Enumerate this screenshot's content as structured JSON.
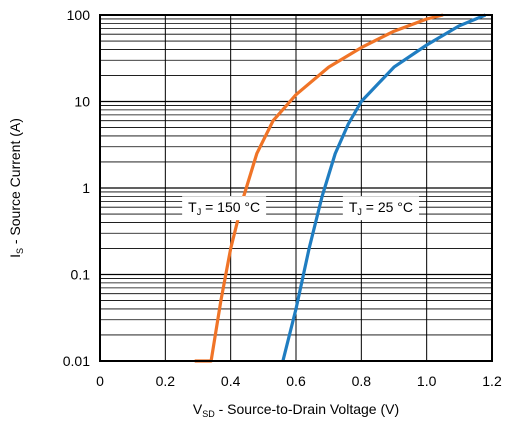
{
  "chart_data": {
    "type": "line",
    "xlabel": {
      "main": "V",
      "sub": "SD",
      "rest": " - Source-to-Drain Voltage (V)"
    },
    "ylabel": {
      "main": "I",
      "sub": "S",
      "rest": " - Source Current (A)"
    },
    "xlim": [
      0,
      1.2
    ],
    "ylim": [
      0.01,
      100
    ],
    "yscale": "log",
    "grid": true,
    "x_ticks": [
      0,
      0.2,
      0.4,
      0.6,
      0.8,
      1.0,
      1.2
    ],
    "x_tick_labels": [
      "0",
      "0.2",
      "0.4",
      "0.6",
      "0.8",
      "1.0",
      "1.2"
    ],
    "y_ticks": [
      0.01,
      0.1,
      1,
      10,
      100
    ],
    "y_tick_labels": [
      "0.01",
      "0.1",
      "1",
      "10",
      "100"
    ],
    "series": [
      {
        "name": {
          "main": "T",
          "sub": "J",
          "rest": " = 150 °C"
        },
        "color": "#F07427",
        "points": [
          [
            0.29,
            0.01
          ],
          [
            0.31,
            0.01
          ],
          [
            0.34,
            0.01
          ],
          [
            0.37,
            0.05
          ],
          [
            0.4,
            0.2
          ],
          [
            0.44,
            0.8
          ],
          [
            0.48,
            2.5
          ],
          [
            0.53,
            6
          ],
          [
            0.6,
            12
          ],
          [
            0.7,
            25
          ],
          [
            0.8,
            42
          ],
          [
            0.9,
            65
          ],
          [
            1.0,
            90
          ],
          [
            1.05,
            100
          ]
        ]
      },
      {
        "name": {
          "main": "T",
          "sub": "J",
          "rest": " = 25 °C"
        },
        "color": "#1F7DC1",
        "points": [
          [
            0.56,
            0.01
          ],
          [
            0.6,
            0.04
          ],
          [
            0.64,
            0.2
          ],
          [
            0.68,
            0.8
          ],
          [
            0.72,
            2.5
          ],
          [
            0.76,
            5.5
          ],
          [
            0.8,
            10
          ],
          [
            0.9,
            25
          ],
          [
            1.0,
            45
          ],
          [
            1.1,
            75
          ],
          [
            1.18,
            100
          ]
        ]
      }
    ],
    "annotations": [
      {
        "series": 0,
        "x": 0.38,
        "y": 0.6
      },
      {
        "series": 1,
        "x": 0.86,
        "y": 0.6
      }
    ]
  }
}
